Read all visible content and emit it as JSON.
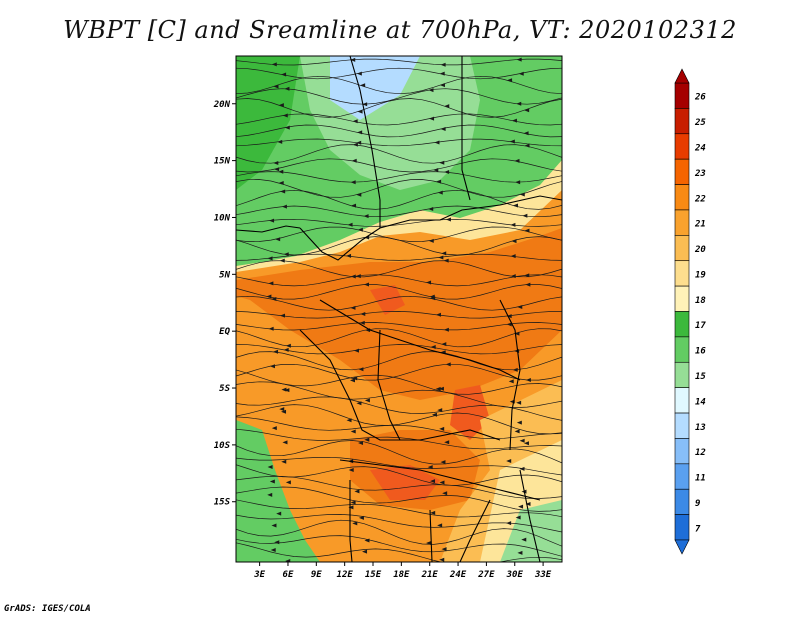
{
  "title": "WBPT [C] and Sreamline at 700hPa, VT: 2020102312",
  "credit": "GrADS: IGES/COLA",
  "lat_labels": [
    "20N",
    "15N",
    "10N",
    "5N",
    "EQ",
    "5S",
    "10S",
    "15S"
  ],
  "lat_values": [
    20,
    15,
    10,
    5,
    0,
    -5,
    -10,
    -15
  ],
  "lon_labels": [
    "3E",
    "6E",
    "9E",
    "12E",
    "15E",
    "18E",
    "21E",
    "24E",
    "27E",
    "30E",
    "33E"
  ],
  "lon_values": [
    3,
    6,
    9,
    12,
    15,
    18,
    21,
    24,
    27,
    30,
    33
  ],
  "colorbar": {
    "labels": [
      "26",
      "25",
      "24",
      "23",
      "22",
      "21",
      "20",
      "19",
      "18",
      "17",
      "16",
      "15",
      "14",
      "13",
      "12",
      "11",
      "9",
      "7"
    ],
    "colors": [
      "#a50000",
      "#c81e00",
      "#e83c00",
      "#f56400",
      "#f88a14",
      "#f9a22e",
      "#fbbd53",
      "#fdde8e",
      "#fff2b8",
      "#3cb93c",
      "#63cc63",
      "#96de96",
      "#e0f8ff",
      "#b4dcff",
      "#87bef8",
      "#5aa0f0",
      "#3c8ae6",
      "#1e6ed8"
    ]
  },
  "field_colors": {
    "warm_dark": "#f07a14",
    "warm": "#f89a28",
    "warm_light": "#fbbd53",
    "pale": "#fde59a",
    "green_dark": "#3cb93c",
    "green": "#63cc63",
    "green_light": "#96de96",
    "blue_light": "#b4dcff",
    "hot": "#f05a1e"
  }
}
